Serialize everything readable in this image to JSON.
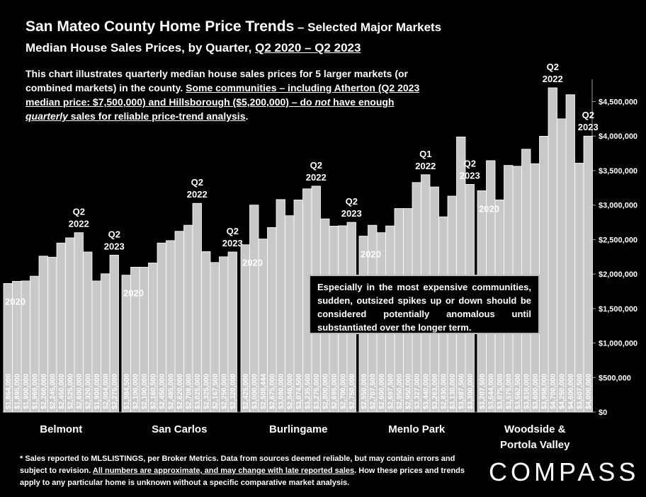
{
  "header": {
    "title": "San Mateo County Home Price Trends",
    "title_suffix": " – Selected Major Markets",
    "subtitle_prefix": "Median House Sales Prices, by Quarter, ",
    "subtitle_period": "Q2 2020 – Q2 2023"
  },
  "intro": {
    "part1": "This chart illustrates quarterly median house sales prices for 5 larger markets (or combined markets) in the county. ",
    "part2_a": "Some communities – including Atherton (Q2 2023 median price: $7,500,000) and Hillsborough ($5,200,000) – do ",
    "part2_not": "not",
    "part2_b": " have enough ",
    "part2_quarterly": "quarterly",
    "part2_c": " sales for reliable price-trend analysis",
    "part3": "."
  },
  "callout": "Especially in the most expensive communities, sudden, outsized spikes up or down should be considered potentially anomalous until substantiated over the longer term.",
  "footnote": {
    "part1": "* Sales reported to MLSLISTINGS, per Broker Metrics. Data from sources deemed reliable, but may contain errors and subject to revision. ",
    "part2": "All numbers are approximate, and may change with late reported sales",
    "part3": ". How these prices and trends apply to any particular home is unknown without a specific comparative market analysis."
  },
  "logo": "COMPASS",
  "colors": {
    "background": "#000000",
    "bar": "#c8c8c8",
    "bar_border": "#ffffff",
    "text": "#ffffff"
  },
  "chart_data": {
    "type": "bar",
    "ylim": [
      0,
      4700000
    ],
    "yticks": [
      {
        "value": 0,
        "label": "$0"
      },
      {
        "value": 500000,
        "label": "$500,000"
      },
      {
        "value": 1000000,
        "label": "$1,000,000"
      },
      {
        "value": 1500000,
        "label": "$1,500,000"
      },
      {
        "value": 2000000,
        "label": "$2,000,000"
      },
      {
        "value": 2500000,
        "label": "$2,500,000"
      },
      {
        "value": 3000000,
        "label": "$3,000,000"
      },
      {
        "value": 3500000,
        "label": "$3,500,000"
      },
      {
        "value": 4000000,
        "label": "$4,000,000"
      },
      {
        "value": 4500000,
        "label": "$4,500,000"
      }
    ],
    "groups": [
      {
        "name": "Belmont",
        "values": [
          1864000,
          1895000,
          1900000,
          1969000,
          2260000,
          2245000,
          2450000,
          2525000,
          2600000,
          2320000,
          1900000,
          2004000,
          2275000
        ],
        "labels": [
          "$1,864,000",
          "$1,895,000",
          "$1,900,000",
          "$1,969,000",
          "$2,260,000",
          "$2,245,000",
          "$2,450,000",
          "$2,525,000",
          "$2,600,000",
          "$2,320,000",
          "$1,900,000",
          "$2,004,000",
          "$2,275,000"
        ],
        "annotations": [
          {
            "index": 0,
            "text": "2020"
          },
          {
            "index": 8,
            "text": "Q2 2022"
          },
          {
            "index": 12,
            "text": "Q2 2023"
          }
        ]
      },
      {
        "name": "San Carlos",
        "values": [
          1984500,
          2100000,
          2100000,
          2160500,
          2450000,
          2485000,
          2620000,
          2708000,
          3025000,
          2325000,
          2167500,
          2250000,
          2320000
        ],
        "labels": [
          "$1,984,500",
          "$2,100,000",
          "$2,100,000",
          "$2,160,500",
          "$2,450,000",
          "$2,485,000",
          "$2,620,000",
          "$2,708,000",
          "$3,025,000",
          "$2,325,000",
          "$2,167,500",
          "$2,250,000",
          "$2,320,000"
        ],
        "annotations": [
          {
            "index": 0,
            "text": "2020"
          },
          {
            "index": 8,
            "text": "Q2 2022"
          },
          {
            "index": 12,
            "text": "Q2 2023"
          }
        ]
      },
      {
        "name": "Burlingame",
        "values": [
          2425000,
          3000000,
          2508444,
          2675000,
          3080000,
          2846000,
          3074500,
          3235500,
          3275000,
          2800000,
          2695000,
          2700000,
          2750000
        ],
        "labels": [
          "$2,425,000",
          "$3,000,000",
          "$2,508,444",
          "$2,675,000",
          "$3,080,000",
          "$2,846,000",
          "$3,074,500",
          "$3,235,500",
          "$3,275,000",
          "$2,800,000",
          "$2,695,000",
          "$2,700,000",
          "$2,750,000"
        ],
        "annotations": [
          {
            "index": 0,
            "text": "2020"
          },
          {
            "index": 8,
            "text": "Q2 2022"
          },
          {
            "index": 12,
            "text": "Q2 2023"
          }
        ]
      },
      {
        "name": "Menlo Park",
        "values": [
          2550000,
          2707500,
          2600000,
          2697500,
          2950000,
          2950000,
          3327000,
          3440000,
          3263000,
          2830000,
          3130000,
          3987500,
          3300000
        ],
        "labels": [
          "$2,550,000",
          "$2,707,500",
          "$2,600,000",
          "$2,697,500",
          "$2,950,000",
          "$2,950,000",
          "$3,327,000",
          "$3,440,000",
          "$3,263,000",
          "$2,830,000",
          "$3,130,000",
          "$3,987,500",
          "$3,300,000"
        ],
        "annotations": [
          {
            "index": 0,
            "text": "2020"
          },
          {
            "index": 7,
            "text": "Q1 2022"
          },
          {
            "index": 12,
            "text": "Q2 2023"
          }
        ]
      },
      {
        "name": "Woodside & Portola Valley",
        "values": [
          3207500,
          3644000,
          3075000,
          3575000,
          3562500,
          3810000,
          3600000,
          3998000,
          4700000,
          4250000,
          4600000,
          3607500,
          4000000
        ],
        "labels": [
          "$3,207,500",
          "$3,644,000",
          "$3,075,000",
          "$3,575,000",
          "$3,562,500",
          "$3,810,000",
          "$3,600,000",
          "$3,998,000",
          "$4,700,000",
          "$4,250,000",
          "$4,600,000",
          "$3,607,500",
          "$4,000,000"
        ],
        "annotations": [
          {
            "index": 0,
            "text": "2020"
          },
          {
            "index": 8,
            "text": "Q2 2022"
          },
          {
            "index": 12,
            "text": "Q2 2023"
          }
        ]
      }
    ]
  }
}
